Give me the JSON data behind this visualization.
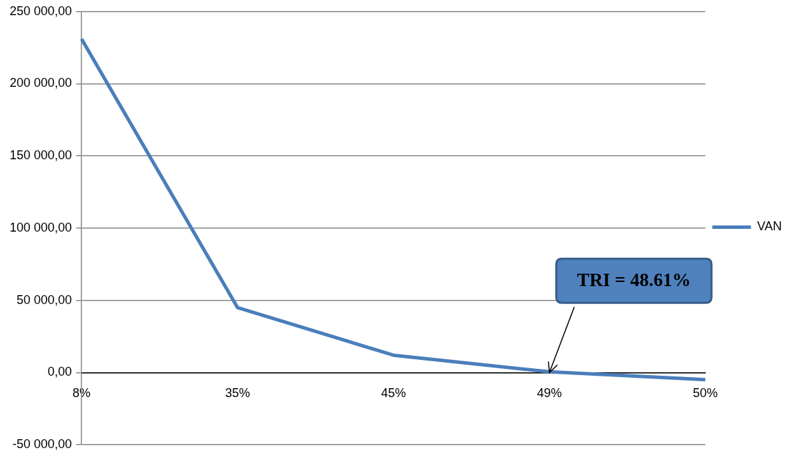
{
  "chart_data": {
    "type": "line",
    "categories": [
      "8%",
      "35%",
      "45%",
      "49%",
      "50%"
    ],
    "series": [
      {
        "name": "VAN",
        "color": "#4a7ebb",
        "values": [
          231000,
          45000,
          12000,
          500,
          -5000
        ]
      }
    ],
    "ylim": [
      -50000,
      250000
    ],
    "yticks": [
      {
        "value": -50000,
        "label": "-50 000,00"
      },
      {
        "value": 0,
        "label": "0,00"
      },
      {
        "value": 50000,
        "label": "50 000,00"
      },
      {
        "value": 100000,
        "label": "100 000,00"
      },
      {
        "value": 150000,
        "label": "150 000,00"
      },
      {
        "value": 200000,
        "label": "200 000,00"
      },
      {
        "value": 250000,
        "label": "250 000,00"
      }
    ],
    "grid": "y",
    "legend": "right",
    "marker": "none",
    "line_style": "solid",
    "annotations": [
      {
        "text": "TRI = 48.61%",
        "x": "49%",
        "y": 0
      }
    ]
  }
}
